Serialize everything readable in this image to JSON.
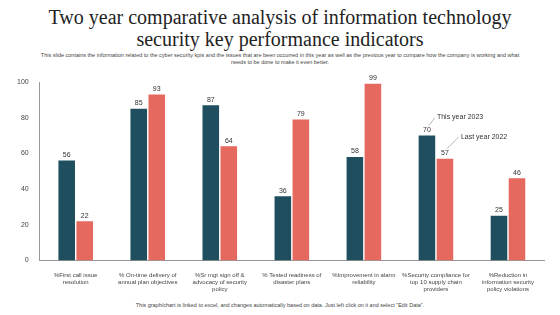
{
  "chart_data": {
    "type": "bar",
    "title": "Two year comparative analysis of information technology security key performance indicators",
    "subtitle": "This slide contains the information related to the cyber security kpis and the issues that are been occurred in this year as well as the previous year to compare how the company is working and what needs to be done to make it even better.",
    "footnote": "This graph/chart is linked to excel, and changes automatically based on data. Just left click on it and select \"Edit Data\".",
    "categories": [
      "%First call issue resolution",
      "% On-time delivery of annual plan objectives",
      "%Sr mgt sign off & advocacy of security policy",
      "% Tested readiness of disaster plans",
      "%Improvement in alarm reliability",
      "%Security compliance for top 10 supply chain providers",
      "%Reduction in information security policy violations"
    ],
    "series": [
      {
        "name": "This year 2023",
        "color": "#1f4e5f",
        "values": [
          56,
          85,
          87,
          36,
          58,
          70,
          25
        ]
      },
      {
        "name": "Last year 2022",
        "color": "#e5695f",
        "values": [
          22,
          93,
          64,
          79,
          99,
          57,
          46
        ]
      }
    ],
    "ylim": [
      0,
      100
    ],
    "yticks": [
      0,
      20,
      40,
      60,
      80,
      100
    ],
    "grid": false,
    "data_labels": true
  }
}
